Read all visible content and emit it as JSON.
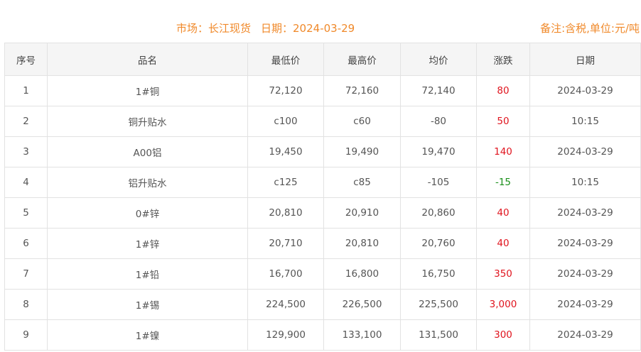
{
  "header": {
    "market": "市场：长江现货",
    "date": "日期：2024-03-29",
    "note": "备注:含税,单位:元/吨"
  },
  "colors": {
    "accent": "#f0892a",
    "up": "#e0141e",
    "down": "#1a8f1a"
  },
  "table": {
    "columns": [
      "序号",
      "品名",
      "最低价",
      "最高价",
      "均价",
      "涨跌",
      "日期"
    ],
    "rows": [
      [
        "1",
        "1#铜",
        "72,120",
        "72,160",
        "72,140",
        "80",
        "2024-03-29"
      ],
      [
        "2",
        "铜升贴水",
        "c100",
        "c60",
        "-80",
        "50",
        "10:15"
      ],
      [
        "3",
        "A00铝",
        "19,450",
        "19,490",
        "19,470",
        "140",
        "2024-03-29"
      ],
      [
        "4",
        "铝升贴水",
        "c125",
        "c85",
        "-105",
        "-15",
        "10:15"
      ],
      [
        "5",
        "0#锌",
        "20,810",
        "20,910",
        "20,860",
        "40",
        "2024-03-29"
      ],
      [
        "6",
        "1#锌",
        "20,710",
        "20,810",
        "20,760",
        "40",
        "2024-03-29"
      ],
      [
        "7",
        "1#铅",
        "16,700",
        "16,800",
        "16,750",
        "350",
        "2024-03-29"
      ],
      [
        "8",
        "1#锡",
        "224,500",
        "226,500",
        "225,500",
        "3,000",
        "2024-03-29"
      ],
      [
        "9",
        "1#镍",
        "129,900",
        "133,100",
        "131,500",
        "300",
        "2024-03-29"
      ]
    ]
  }
}
